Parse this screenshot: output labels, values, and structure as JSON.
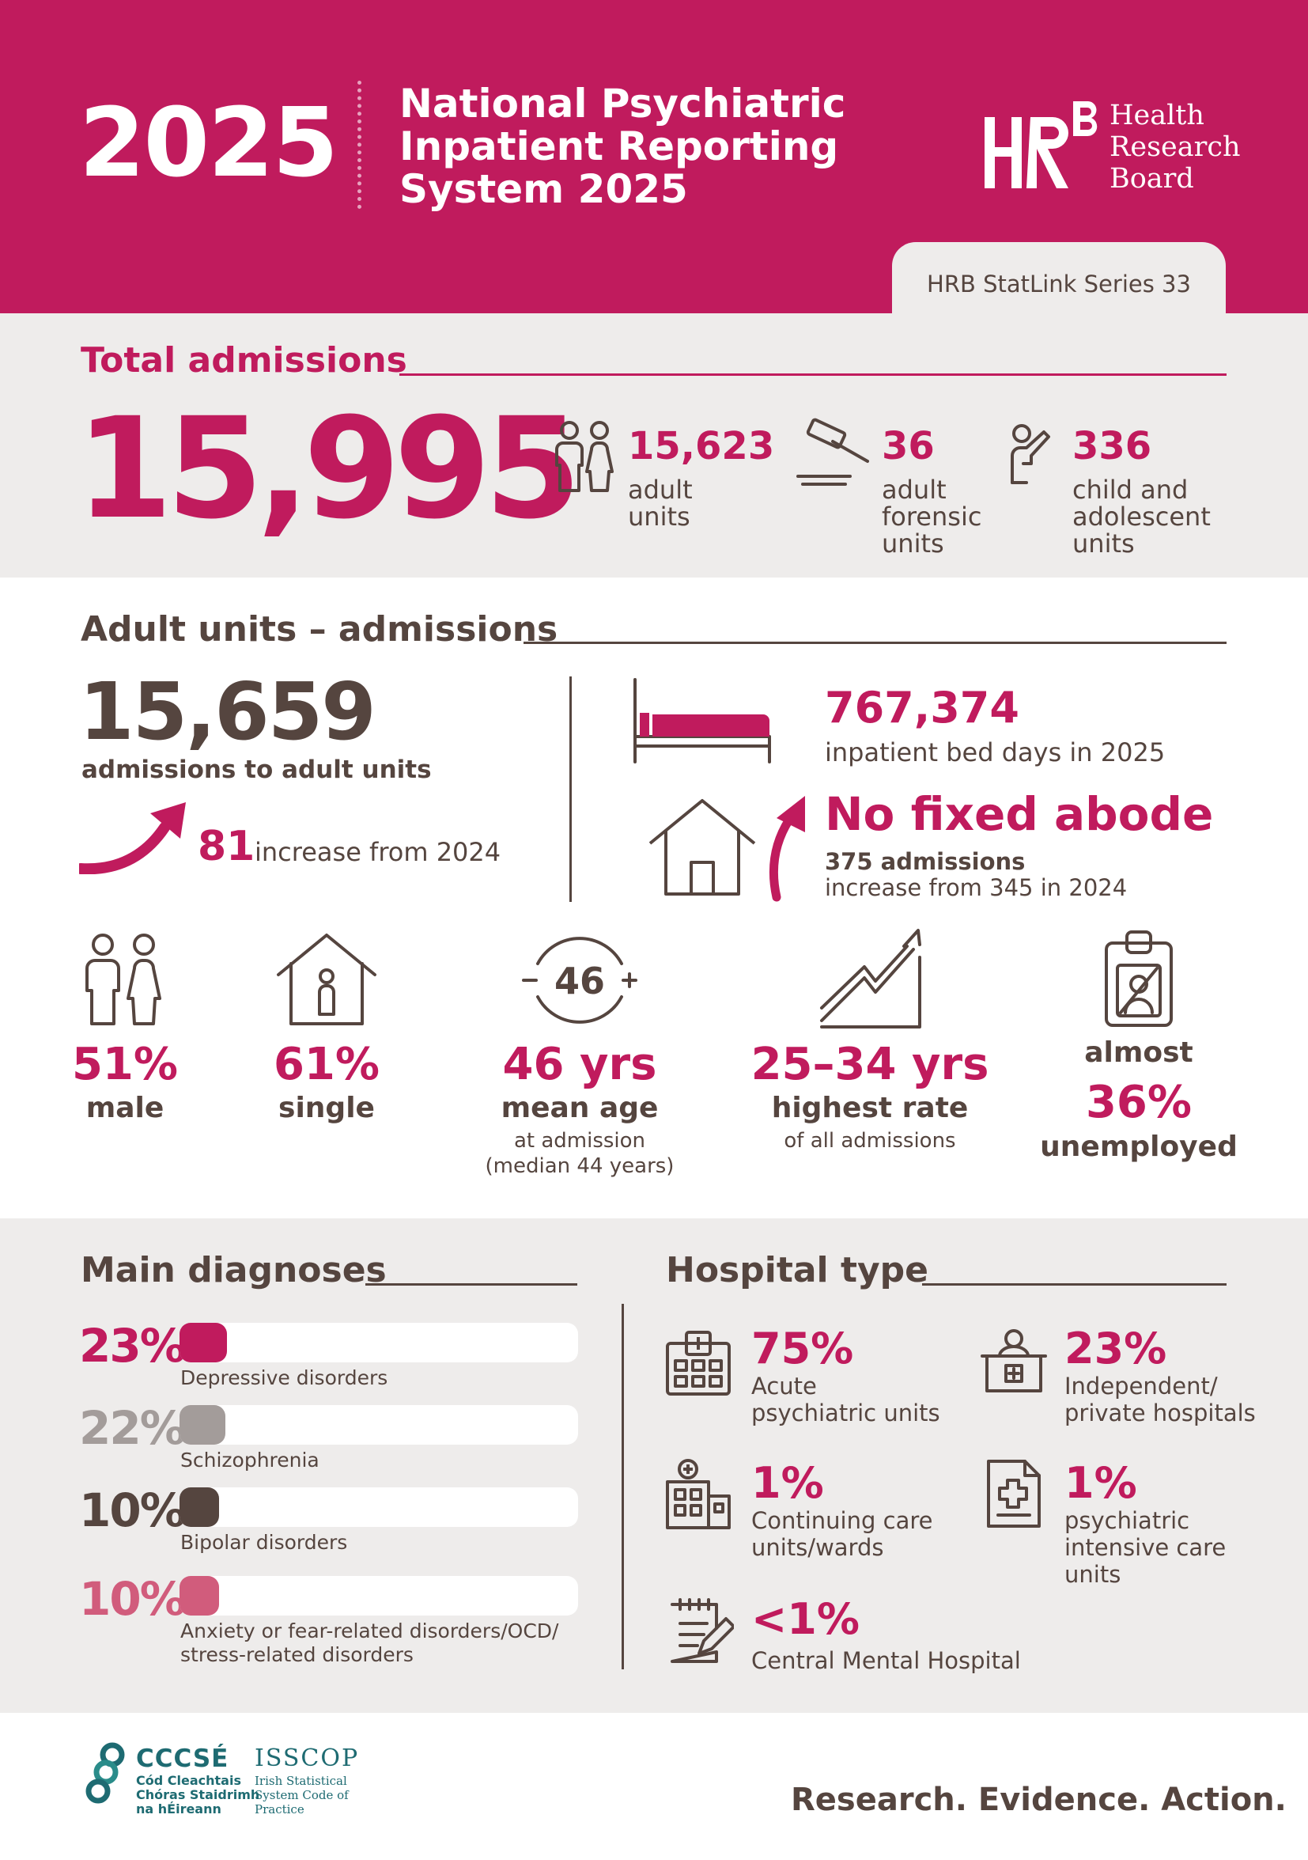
{
  "header": {
    "year": "2025",
    "title_lines": [
      "National Psychiatric",
      "Inpatient Reporting",
      "System 2025"
    ],
    "logo_lines": [
      "Health",
      "Research",
      "Board"
    ],
    "series_label": "HRB StatLink Series 33"
  },
  "total_admissions": {
    "title": "Total admissions",
    "value": "15,995",
    "breakdown": [
      {
        "value": "15,623",
        "label_lines": [
          "adult",
          "units"
        ],
        "icon": "people-icon"
      },
      {
        "value": "36",
        "label_lines": [
          "adult",
          "forensic",
          "units"
        ],
        "icon": "gavel-icon"
      },
      {
        "value": "336",
        "label_lines": [
          "child and",
          "adolescent",
          "units"
        ],
        "icon": "child-icon"
      }
    ]
  },
  "adult_admissions": {
    "title": "Adult units – admissions",
    "value": "15,659",
    "value_label": "admissions to adult units",
    "increase_value": "81",
    "increase_label": "increase from 2024",
    "bed_days_value": "767,374",
    "bed_days_label": "inpatient bed days in 2025",
    "nfa_title": "No fixed abode",
    "nfa_admissions": "375 admissions",
    "nfa_increase": "increase from 345 in 2024"
  },
  "demographics": [
    {
      "icon": "male-female-icon",
      "big": "51%",
      "sub": "male",
      "small": []
    },
    {
      "icon": "house-person-icon",
      "big": "61%",
      "sub": "single",
      "small": []
    },
    {
      "icon": "age-46-icon",
      "icon_text": "46",
      "big": "46 yrs",
      "sub": "mean age",
      "small": [
        "at admission",
        "(median 44 years)"
      ]
    },
    {
      "icon": "trend-up-icon",
      "big": "25–34 yrs",
      "sub": "highest rate",
      "small": [
        "of all admissions"
      ]
    },
    {
      "icon": "id-badge-icon",
      "pre": "almost",
      "big": "36%",
      "sub": "unemployed",
      "small": []
    }
  ],
  "diagnoses": {
    "title": "Main diagnoses",
    "items": [
      {
        "pct": "23%",
        "value": 23,
        "label_lines": [
          "Depressive disorders"
        ],
        "color": "#c01b5d"
      },
      {
        "pct": "22%",
        "value": 22,
        "label_lines": [
          "Schizophrenia"
        ],
        "color": "#a39c9a"
      },
      {
        "pct": "10%",
        "value": 10,
        "label_lines": [
          "Bipolar disorders"
        ],
        "color": "#55453f"
      },
      {
        "pct": "10%",
        "value": 10,
        "label_lines": [
          "Anxiety or fear-related disorders/OCD/",
          "stress-related disorders"
        ],
        "color": "#d15c7c"
      }
    ]
  },
  "hospital_type": {
    "title": "Hospital type",
    "items": [
      {
        "pct": "75%",
        "label_lines": [
          "Acute",
          "psychiatric units"
        ],
        "icon": "hospital-building-icon"
      },
      {
        "pct": "23%",
        "label_lines": [
          "Independent/",
          "private hospitals"
        ],
        "icon": "reception-desk-icon"
      },
      {
        "pct": "1%",
        "label_lines": [
          "Continuing care",
          "units/wards"
        ],
        "icon": "care-building-icon"
      },
      {
        "pct": "1%",
        "label_lines": [
          "psychiatric",
          "intensive care",
          "units"
        ],
        "icon": "medical-document-icon"
      },
      {
        "pct": "<1%",
        "label_lines": [
          "Central Mental Hospital"
        ],
        "icon": "notepad-pen-icon"
      }
    ]
  },
  "footer": {
    "cccse_title": "CCCSÉ",
    "cccse_lines": [
      "Cód Cleachtais",
      "Chóras Staidrimh",
      "na hÉireann"
    ],
    "isscop_title": "ISSCOP",
    "isscop_lines": [
      "Irish Statistical",
      "System Code of",
      "Practice"
    ],
    "tagline": "Research. Evidence. Action."
  },
  "colors": {
    "brand": "#c01b5d",
    "text": "#55453f",
    "light_bg": "#eeeceb",
    "teal": "#1e6b72"
  }
}
